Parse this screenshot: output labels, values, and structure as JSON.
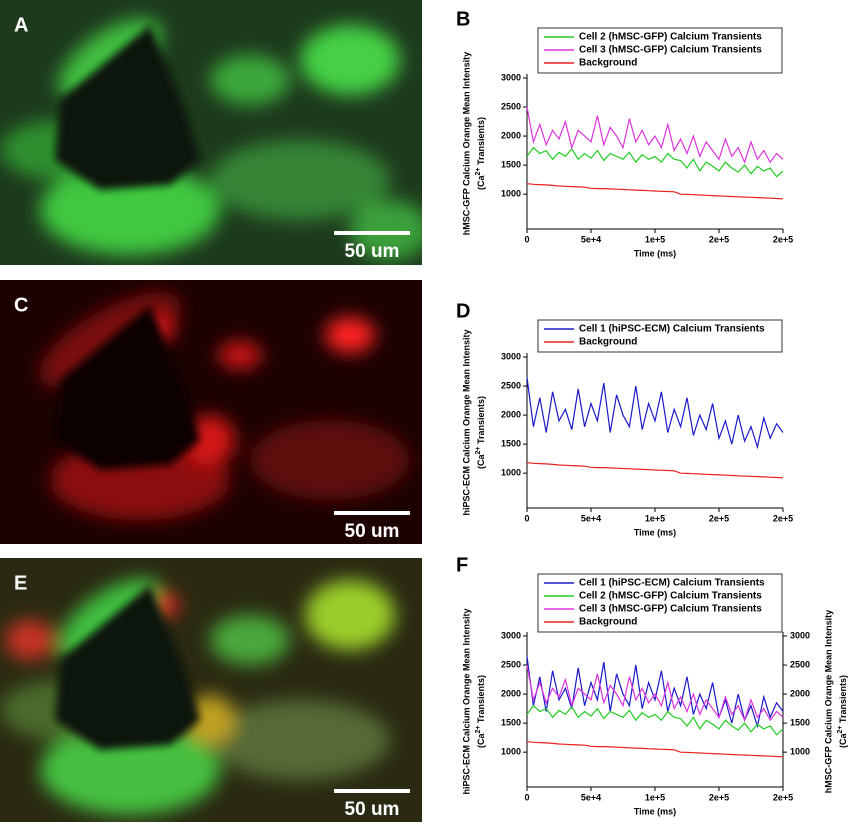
{
  "images": [
    {
      "label": "A",
      "scale_bar": "50 um"
    },
    {
      "label": "C",
      "scale_bar": "50 um"
    },
    {
      "label": "E",
      "scale_bar": "50 um"
    }
  ],
  "chart_data": [
    {
      "type": "line",
      "panel": "B",
      "xlabel": "Time (ms)",
      "ylabel": "hMSC-GFP Calcium Orange Mean Intensity",
      "ylabel_sub": [
        "(Ca",
        "2+",
        " Transients)"
      ],
      "x": [
        0,
        5000,
        10000,
        15000,
        20000,
        25000,
        30000,
        35000,
        40000,
        45000,
        50000,
        55000,
        60000,
        65000,
        70000,
        75000,
        80000,
        85000,
        90000,
        95000,
        100000,
        105000,
        110000,
        115000,
        120000,
        125000,
        130000,
        135000,
        140000,
        145000,
        150000,
        155000,
        160000,
        165000,
        170000,
        175000,
        180000,
        185000,
        190000,
        195000,
        200000
      ],
      "xlim": [
        0,
        200000
      ],
      "xticks": [
        0,
        {
          "value": 50000,
          "label": "5e+4"
        },
        {
          "value": 100000,
          "label": "1e+5"
        },
        {
          "value": 150000,
          "label": "2e+5"
        },
        {
          "value": 200000,
          "label": "2e+5"
        }
      ],
      "ylim": [
        400,
        3000
      ],
      "yticks": [
        1000,
        1500,
        2000,
        2500,
        3000
      ],
      "series": [
        {
          "name": "Cell 2 (hMSC-GFP) Calcium Transients",
          "color": "#22cc22",
          "values": [
            1650,
            1800,
            1700,
            1750,
            1600,
            1720,
            1650,
            1780,
            1600,
            1700,
            1620,
            1750,
            1580,
            1700,
            1650,
            1600,
            1720,
            1550,
            1680,
            1600,
            1650,
            1550,
            1700,
            1600,
            1580,
            1450,
            1600,
            1400,
            1550,
            1480,
            1400,
            1550,
            1450,
            1380,
            1500,
            1350,
            1480,
            1400,
            1450,
            1300,
            1400
          ]
        },
        {
          "name": "Cell 3 (hMSC-GFP) Calcium Transients",
          "color": "#dd33dd",
          "values": [
            2500,
            1900,
            2200,
            1850,
            2100,
            1950,
            2250,
            1800,
            2100,
            2000,
            1900,
            2350,
            1850,
            2150,
            2000,
            1800,
            2300,
            1900,
            2100,
            1850,
            2000,
            1800,
            2200,
            1750,
            1950,
            1700,
            2000,
            1650,
            1900,
            1750,
            1600,
            1950,
            1650,
            1800,
            1550,
            1900,
            1600,
            1750,
            1550,
            1700,
            1600
          ]
        },
        {
          "name": "Background",
          "color": "#e82020",
          "values": [
            1180,
            1170,
            1165,
            1160,
            1150,
            1140,
            1135,
            1130,
            1125,
            1120,
            1100,
            1095,
            1095,
            1090,
            1085,
            1080,
            1075,
            1070,
            1065,
            1060,
            1055,
            1050,
            1045,
            1040,
            1000,
            995,
            990,
            985,
            980,
            975,
            970,
            965,
            960,
            955,
            950,
            945,
            940,
            935,
            930,
            925,
            920
          ]
        }
      ]
    },
    {
      "type": "line",
      "panel": "D",
      "xlabel": "Time (ms)",
      "ylabel": "hiPSC-ECM Calcium Orange Mean Intensity",
      "ylabel_sub": [
        "(Ca",
        "2+",
        " Transients)"
      ],
      "x": [
        0,
        5000,
        10000,
        15000,
        20000,
        25000,
        30000,
        35000,
        40000,
        45000,
        50000,
        55000,
        60000,
        65000,
        70000,
        75000,
        80000,
        85000,
        90000,
        95000,
        100000,
        105000,
        110000,
        115000,
        120000,
        125000,
        130000,
        135000,
        140000,
        145000,
        150000,
        155000,
        160000,
        165000,
        170000,
        175000,
        180000,
        185000,
        190000,
        195000,
        200000
      ],
      "xlim": [
        0,
        200000
      ],
      "xticks": [
        0,
        {
          "value": 50000,
          "label": "5e+4"
        },
        {
          "value": 100000,
          "label": "1e+5"
        },
        {
          "value": 150000,
          "label": "2e+5"
        },
        {
          "value": 200000,
          "label": "2e+5"
        }
      ],
      "ylim": [
        400,
        3000
      ],
      "yticks": [
        1000,
        1500,
        2000,
        2500,
        3000
      ],
      "series": [
        {
          "name": "Cell 1 (hiPSC-ECM) Calcium Transients",
          "color": "#1a1acc",
          "values": [
            2650,
            1800,
            2300,
            1700,
            2400,
            1900,
            2100,
            1750,
            2450,
            1800,
            2200,
            1900,
            2550,
            1700,
            2350,
            2000,
            1800,
            2500,
            1750,
            2200,
            1900,
            2400,
            1700,
            2100,
            1800,
            2300,
            1650,
            2000,
            1750,
            2200,
            1600,
            1900,
            1500,
            2000,
            1550,
            1800,
            1450,
            1950,
            1600,
            1850,
            1700
          ]
        },
        {
          "name": "Background",
          "color": "#e82020",
          "values": [
            1180,
            1170,
            1165,
            1160,
            1150,
            1140,
            1135,
            1130,
            1125,
            1120,
            1100,
            1095,
            1095,
            1090,
            1085,
            1080,
            1075,
            1070,
            1065,
            1060,
            1055,
            1050,
            1045,
            1040,
            1000,
            995,
            990,
            985,
            980,
            975,
            970,
            965,
            960,
            955,
            950,
            945,
            940,
            935,
            930,
            925,
            920
          ]
        }
      ]
    },
    {
      "type": "line",
      "panel": "F",
      "xlabel": "Time (ms)",
      "ylabel": "hiPSC-ECM Calcium Orange Mean Intensity",
      "ylabel_sub": [
        "(Ca",
        "2+",
        " Transients)"
      ],
      "y2label": "hMSC-GFP Calcium Orange Mean Intensity",
      "y2label_sub": [
        "(Ca",
        "2+",
        " Transients)"
      ],
      "x": [
        0,
        5000,
        10000,
        15000,
        20000,
        25000,
        30000,
        35000,
        40000,
        45000,
        50000,
        55000,
        60000,
        65000,
        70000,
        75000,
        80000,
        85000,
        90000,
        95000,
        100000,
        105000,
        110000,
        115000,
        120000,
        125000,
        130000,
        135000,
        140000,
        145000,
        150000,
        155000,
        160000,
        165000,
        170000,
        175000,
        180000,
        185000,
        190000,
        195000,
        200000
      ],
      "xlim": [
        0,
        200000
      ],
      "xticks": [
        0,
        {
          "value": 50000,
          "label": "5e+4"
        },
        {
          "value": 100000,
          "label": "1e+5"
        },
        {
          "value": 150000,
          "label": "2e+5"
        },
        {
          "value": 200000,
          "label": "2e+5"
        }
      ],
      "ylim": [
        400,
        3000
      ],
      "yticks": [
        1000,
        1500,
        2000,
        2500,
        3000
      ],
      "y2lim": [
        400,
        3000
      ],
      "y2ticks": [
        1000,
        1500,
        2000,
        2500,
        3000
      ],
      "series": [
        {
          "name": "Cell 1 (hiPSC-ECM) Calcium Transients",
          "color": "#1a1acc",
          "values": [
            2650,
            1800,
            2300,
            1700,
            2400,
            1900,
            2100,
            1750,
            2450,
            1800,
            2200,
            1900,
            2550,
            1700,
            2350,
            2000,
            1800,
            2500,
            1750,
            2200,
            1900,
            2400,
            1700,
            2100,
            1800,
            2300,
            1650,
            2000,
            1750,
            2200,
            1600,
            1900,
            1500,
            2000,
            1550,
            1800,
            1450,
            1950,
            1600,
            1850,
            1700
          ]
        },
        {
          "name": "Cell 2 (hMSC-GFP) Calcium Transients",
          "color": "#22cc22",
          "axis": "y2",
          "values": [
            1650,
            1800,
            1700,
            1750,
            1600,
            1720,
            1650,
            1780,
            1600,
            1700,
            1620,
            1750,
            1580,
            1700,
            1650,
            1600,
            1720,
            1550,
            1680,
            1600,
            1650,
            1550,
            1700,
            1600,
            1580,
            1450,
            1600,
            1400,
            1550,
            1480,
            1400,
            1550,
            1450,
            1380,
            1500,
            1350,
            1480,
            1400,
            1450,
            1300,
            1400
          ]
        },
        {
          "name": "Cell 3 (hMSC-GFP) Calcium Transients",
          "color": "#dd33dd",
          "axis": "y2",
          "values": [
            2500,
            1900,
            2200,
            1850,
            2100,
            1950,
            2250,
            1800,
            2100,
            2000,
            1900,
            2350,
            1850,
            2150,
            2000,
            1800,
            2300,
            1900,
            2100,
            1850,
            2000,
            1800,
            2200,
            1750,
            1950,
            1700,
            2000,
            1650,
            1900,
            1750,
            1600,
            1950,
            1650,
            1800,
            1550,
            1900,
            1600,
            1750,
            1550,
            1700,
            1600
          ]
        },
        {
          "name": "Background",
          "color": "#e82020",
          "values": [
            1180,
            1170,
            1165,
            1160,
            1150,
            1140,
            1135,
            1130,
            1125,
            1120,
            1100,
            1095,
            1095,
            1090,
            1085,
            1080,
            1075,
            1070,
            1065,
            1060,
            1055,
            1050,
            1045,
            1040,
            1000,
            995,
            990,
            985,
            980,
            975,
            970,
            965,
            960,
            955,
            950,
            945,
            940,
            935,
            930,
            925,
            920
          ]
        }
      ]
    }
  ]
}
